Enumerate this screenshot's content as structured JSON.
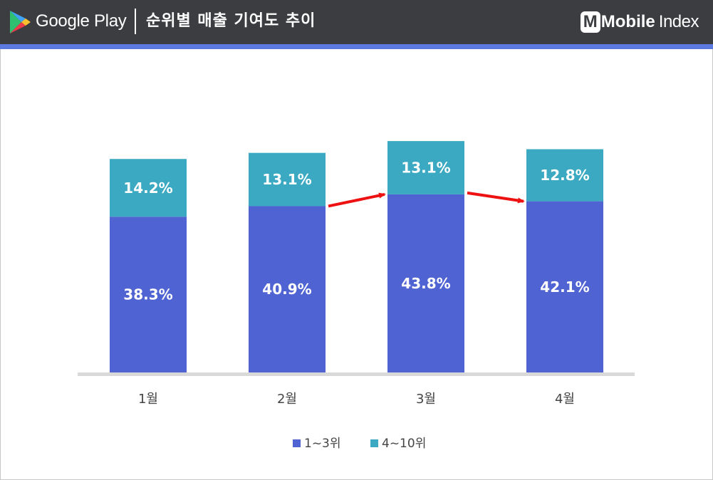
{
  "header": {
    "store_name": "Google Play",
    "title": "순위별 매출 기여도 추이",
    "brand_bold": "Mobile",
    "brand_light": "Index"
  },
  "colors": {
    "header_bg": "#3b3d40",
    "stripe": "#5a7ae0",
    "series_1_3": "#4f63d2",
    "series_4_10": "#3aa9c1",
    "arrow": "#ee1111",
    "axis": "#d9d9d9"
  },
  "chart_data": {
    "type": "bar",
    "stacked": true,
    "categories": [
      "1월",
      "2월",
      "3월",
      "4월"
    ],
    "series": [
      {
        "name": "1~3위",
        "values": [
          38.3,
          40.9,
          43.8,
          42.1
        ],
        "labels": [
          "38.3%",
          "40.9%",
          "43.8%",
          "42.1%"
        ],
        "color": "#4f63d2"
      },
      {
        "name": "4~10위",
        "values": [
          14.2,
          13.1,
          13.1,
          12.8
        ],
        "labels": [
          "14.2%",
          "13.1%",
          "13.1%",
          "12.8%"
        ],
        "color": "#3aa9c1"
      }
    ],
    "unit": "%",
    "ylim": [
      0,
      60
    ],
    "grid": false,
    "legend": "bottom-center",
    "annotations": [
      "arrow from 2월 to 3월",
      "arrow from 3월 to 4월"
    ]
  }
}
